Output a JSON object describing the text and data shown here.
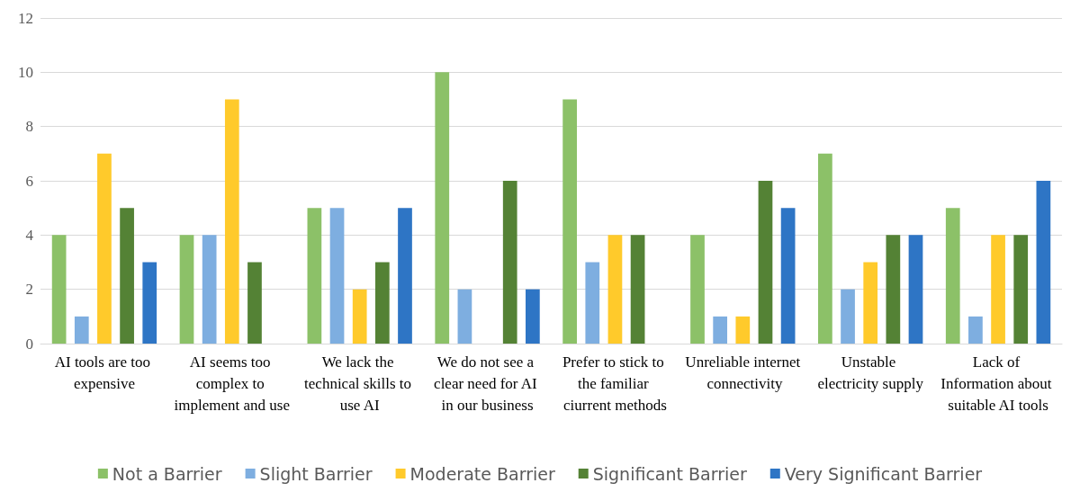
{
  "chart_data": {
    "type": "bar",
    "categories": [
      "AI tools are too expensive",
      "AI seems too complex to implement and use",
      "We lack the technical skills to use AI",
      "We do not see a clear need for AI in our business",
      "Prefer to stick to the familiar ciurrent methods",
      "Unreliable internet connectivity",
      "Unstable electricity supply",
      "Lack of Information about suitable AI tools"
    ],
    "series": [
      {
        "name": "Not a Barrier",
        "color": "#8cc168",
        "values": [
          4,
          4,
          5,
          10,
          9,
          4,
          7,
          5
        ]
      },
      {
        "name": "Slight Barrier",
        "color": "#7eaee0",
        "values": [
          1,
          4,
          5,
          2,
          3,
          1,
          2,
          1
        ]
      },
      {
        "name": "Moderate Barrier",
        "color": "#ffca2b",
        "values": [
          7,
          9,
          2,
          0,
          4,
          1,
          3,
          4
        ]
      },
      {
        "name": "Significant Barrier",
        "color": "#548235",
        "values": [
          5,
          3,
          3,
          6,
          4,
          6,
          4,
          4
        ]
      },
      {
        "name": "Very Significant Barrier",
        "color": "#2e75c5",
        "values": [
          3,
          0,
          5,
          2,
          0,
          5,
          4,
          6
        ]
      }
    ],
    "ylim": [
      0,
      12
    ],
    "yticks": [
      0,
      2,
      4,
      6,
      8,
      10,
      12
    ],
    "grid": "y",
    "legend": "bottom"
  }
}
